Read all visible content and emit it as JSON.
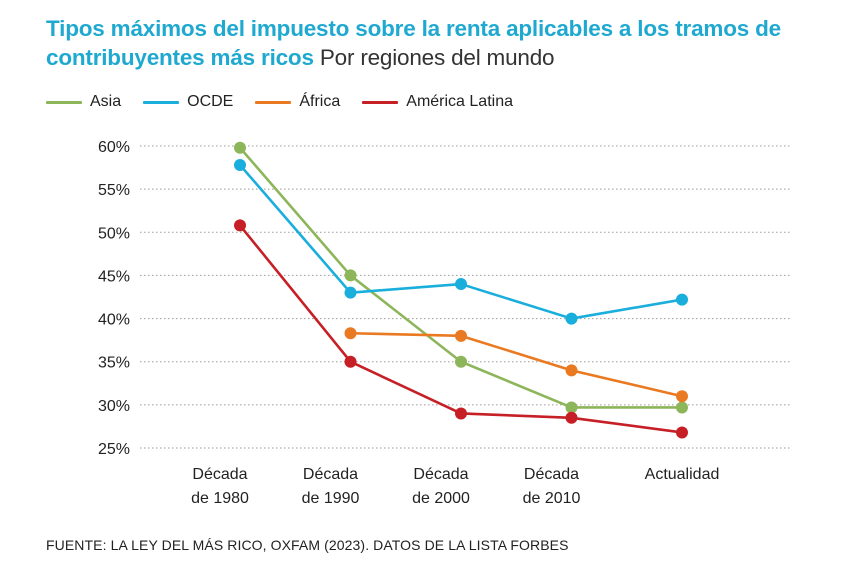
{
  "title": "Tipos máximos del impuesto sobre la renta aplicables a los tramos de contribuyentes más ricos",
  "subtitle": "Por regiones del mundo",
  "source": "FUENTE: LA LEY DEL MÁS RICO, OXFAM (2023). DATOS DE LA LISTA FORBES",
  "chart_data": {
    "type": "line",
    "categories": [
      [
        "Década",
        "de 1980"
      ],
      [
        "Década",
        "de 1990"
      ],
      [
        "Década",
        "de 2000"
      ],
      [
        "Década",
        "de 2010"
      ],
      [
        "Actualidad"
      ]
    ],
    "y_ticks": [
      "25%",
      "30%",
      "35%",
      "40%",
      "45%",
      "50%",
      "55%",
      "60%"
    ],
    "y_tick_values": [
      25,
      30,
      35,
      40,
      45,
      50,
      55,
      60
    ],
    "ylim": [
      25,
      60
    ],
    "grid": true,
    "legend_position": "top-left",
    "series": [
      {
        "name": "Asia",
        "color": "#8db65a",
        "values": [
          59.8,
          45.0,
          35.0,
          29.7,
          29.7
        ]
      },
      {
        "name": "OCDE",
        "color": "#1aaedc",
        "values": [
          57.8,
          43.0,
          44.0,
          40.0,
          42.2
        ]
      },
      {
        "name": "África",
        "color": "#ea7a22",
        "values": [
          null,
          38.3,
          38.0,
          34.0,
          31.0
        ]
      },
      {
        "name": "América Latina",
        "color": "#c62026",
        "values": [
          50.8,
          35.0,
          29.0,
          28.5,
          26.8
        ]
      }
    ]
  }
}
